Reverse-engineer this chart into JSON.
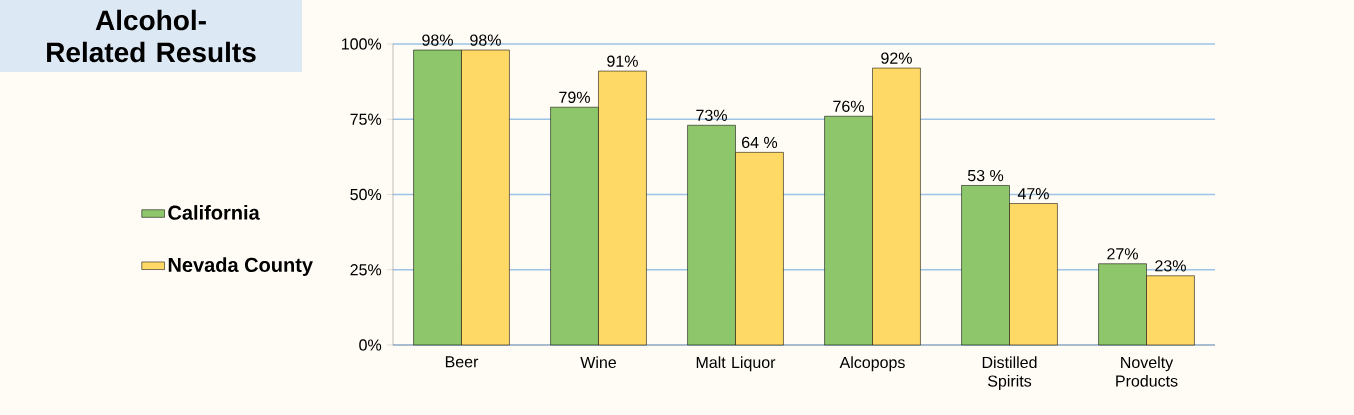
{
  "chart_data": {
    "type": "bar",
    "title": "Alcohol-Related Results",
    "categories": [
      "Beer",
      "Wine",
      "Malt Liquor",
      "Alcopops",
      "Distilled Spirits",
      "Novelty Products"
    ],
    "series": [
      {
        "name": "California",
        "color": "#8dc66b",
        "values": [
          98,
          79,
          73,
          76,
          53,
          27
        ],
        "value_labels": [
          "98%",
          "79%",
          "73%",
          "76%",
          "53 %",
          "27%"
        ]
      },
      {
        "name": "Nevada County",
        "color": "#ffd966",
        "values": [
          98,
          91,
          64,
          92,
          47,
          23
        ],
        "value_labels": [
          "98%",
          "91%",
          "64 %",
          "92%",
          "47%",
          "23%"
        ]
      }
    ],
    "ylim": [
      0,
      100
    ],
    "yticks": [
      {
        "value": 0,
        "label": "0%"
      },
      {
        "value": 25,
        "label": "25%"
      },
      {
        "value": 50,
        "label": "50%"
      },
      {
        "value": 75,
        "label": "75%"
      },
      {
        "value": 100,
        "label": "100%"
      }
    ],
    "grid": "y",
    "legend": "left"
  }
}
